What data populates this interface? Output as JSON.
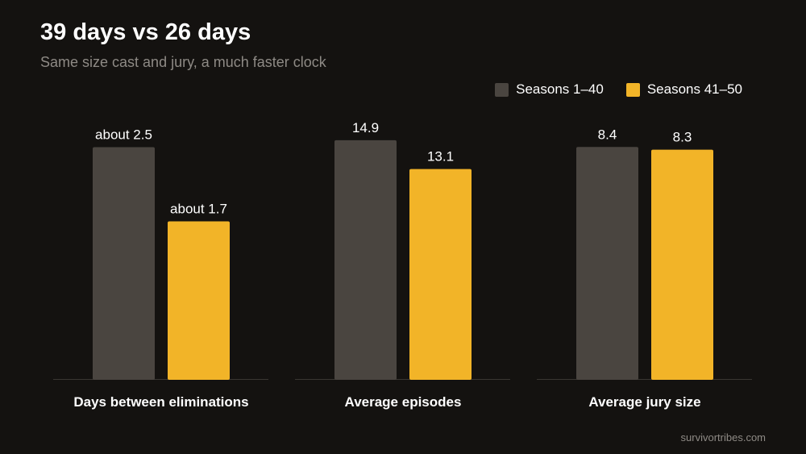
{
  "header": {
    "title": "39 days vs 26 days",
    "subtitle": "Same size cast and jury, a much faster clock"
  },
  "footer": {
    "source": "survivortribes.com"
  },
  "chart_data": {
    "type": "bar",
    "legend_position": "top-right",
    "grid": false,
    "categories": [
      "Days between eliminations",
      "Average episodes",
      "Average jury size"
    ],
    "series": [
      {
        "name": "Seasons 1–40",
        "color": "#4a4540",
        "values": [
          2.5,
          14.9,
          8.4
        ],
        "labels": [
          "about 2.5",
          "14.9",
          "8.4"
        ]
      },
      {
        "name": "Seasons 41–50",
        "color": "#f2b428",
        "values": [
          1.7,
          13.1,
          8.3
        ],
        "labels": [
          "about 1.7",
          "13.1",
          "8.3"
        ]
      }
    ],
    "ylims": [
      [
        0,
        2.8
      ],
      [
        0,
        16.2
      ],
      [
        0,
        9.4
      ]
    ]
  }
}
